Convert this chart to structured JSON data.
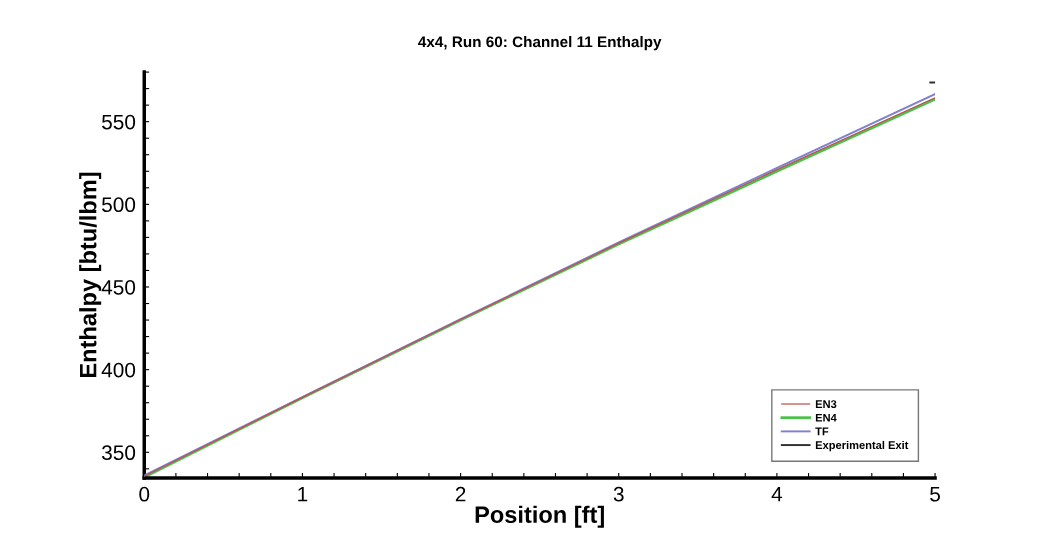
{
  "chart_data": {
    "type": "line",
    "title": "4x4, Run 60: Channel 11 Enthalpy",
    "xlabel": "Position [ft]",
    "ylabel": "Enthalpy [btu/lbm]",
    "series": [
      {
        "name": "EN3",
        "color": "#c0504d",
        "x": [
          0,
          1,
          2,
          3,
          4,
          5
        ],
        "values": [
          335.5,
          383.2,
          430.3,
          476.5,
          521,
          564.5
        ]
      },
      {
        "name": "EN4",
        "color": "#4cc04c",
        "x": [
          0,
          1,
          2,
          3,
          4,
          5
        ],
        "values": [
          335,
          383,
          430,
          476,
          520,
          563.7
        ]
      },
      {
        "name": "TF",
        "color": "#8080d0",
        "x": [
          0,
          1,
          2,
          3,
          4,
          5
        ],
        "values": [
          336,
          383.4,
          430.5,
          477,
          522,
          566.7
        ]
      },
      {
        "name": "Experimental Exit",
        "color": "#303030",
        "x": [
          4.97,
          5.0
        ],
        "values": [
          573.7,
          573.7
        ]
      }
    ],
    "xlim": [
      0,
      5
    ],
    "ylim": [
      334.5,
      580
    ],
    "xticks": [
      0,
      {
        "value": 0.2,
        "label": null
      },
      {
        "value": 0.4,
        "label": null
      },
      {
        "value": 0.6,
        "label": null
      },
      {
        "value": 0.8,
        "label": null
      },
      1,
      {
        "value": 1.2,
        "label": null
      },
      {
        "value": 1.4,
        "label": null
      },
      {
        "value": 1.6,
        "label": null
      },
      {
        "value": 1.8,
        "label": null
      },
      2,
      {
        "value": 2.2,
        "label": null
      },
      {
        "value": 2.4,
        "label": null
      },
      {
        "value": 2.6,
        "label": null
      },
      {
        "value": 2.8,
        "label": null
      },
      3,
      {
        "value": 3.2,
        "label": null
      },
      {
        "value": 3.4,
        "label": null
      },
      {
        "value": 3.6,
        "label": null
      },
      {
        "value": 3.8,
        "label": null
      },
      4,
      {
        "value": 4.2,
        "label": null
      },
      {
        "value": 4.4,
        "label": null
      },
      {
        "value": 4.6,
        "label": null
      },
      {
        "value": 4.8,
        "label": null
      },
      5
    ],
    "yticks": [
      {
        "value": 340,
        "label": null
      },
      350,
      {
        "value": 360,
        "label": null
      },
      {
        "value": 370,
        "label": null
      },
      {
        "value": 380,
        "label": null
      },
      {
        "value": 390,
        "label": null
      },
      400,
      {
        "value": 410,
        "label": null
      },
      {
        "value": 420,
        "label": null
      },
      {
        "value": 430,
        "label": null
      },
      {
        "value": 440,
        "label": null
      },
      450,
      {
        "value": 460,
        "label": null
      },
      {
        "value": 470,
        "label": null
      },
      {
        "value": 480,
        "label": null
      },
      {
        "value": 490,
        "label": null
      },
      500,
      {
        "value": 510,
        "label": null
      },
      {
        "value": 520,
        "label": null
      },
      {
        "value": 530,
        "label": null
      },
      {
        "value": 540,
        "label": null
      },
      550,
      {
        "value": 560,
        "label": null
      },
      {
        "value": 570,
        "label": null
      },
      {
        "value": 580,
        "label": null
      }
    ],
    "grid": false,
    "legend": "bottom right",
    "line_style": "solid"
  }
}
